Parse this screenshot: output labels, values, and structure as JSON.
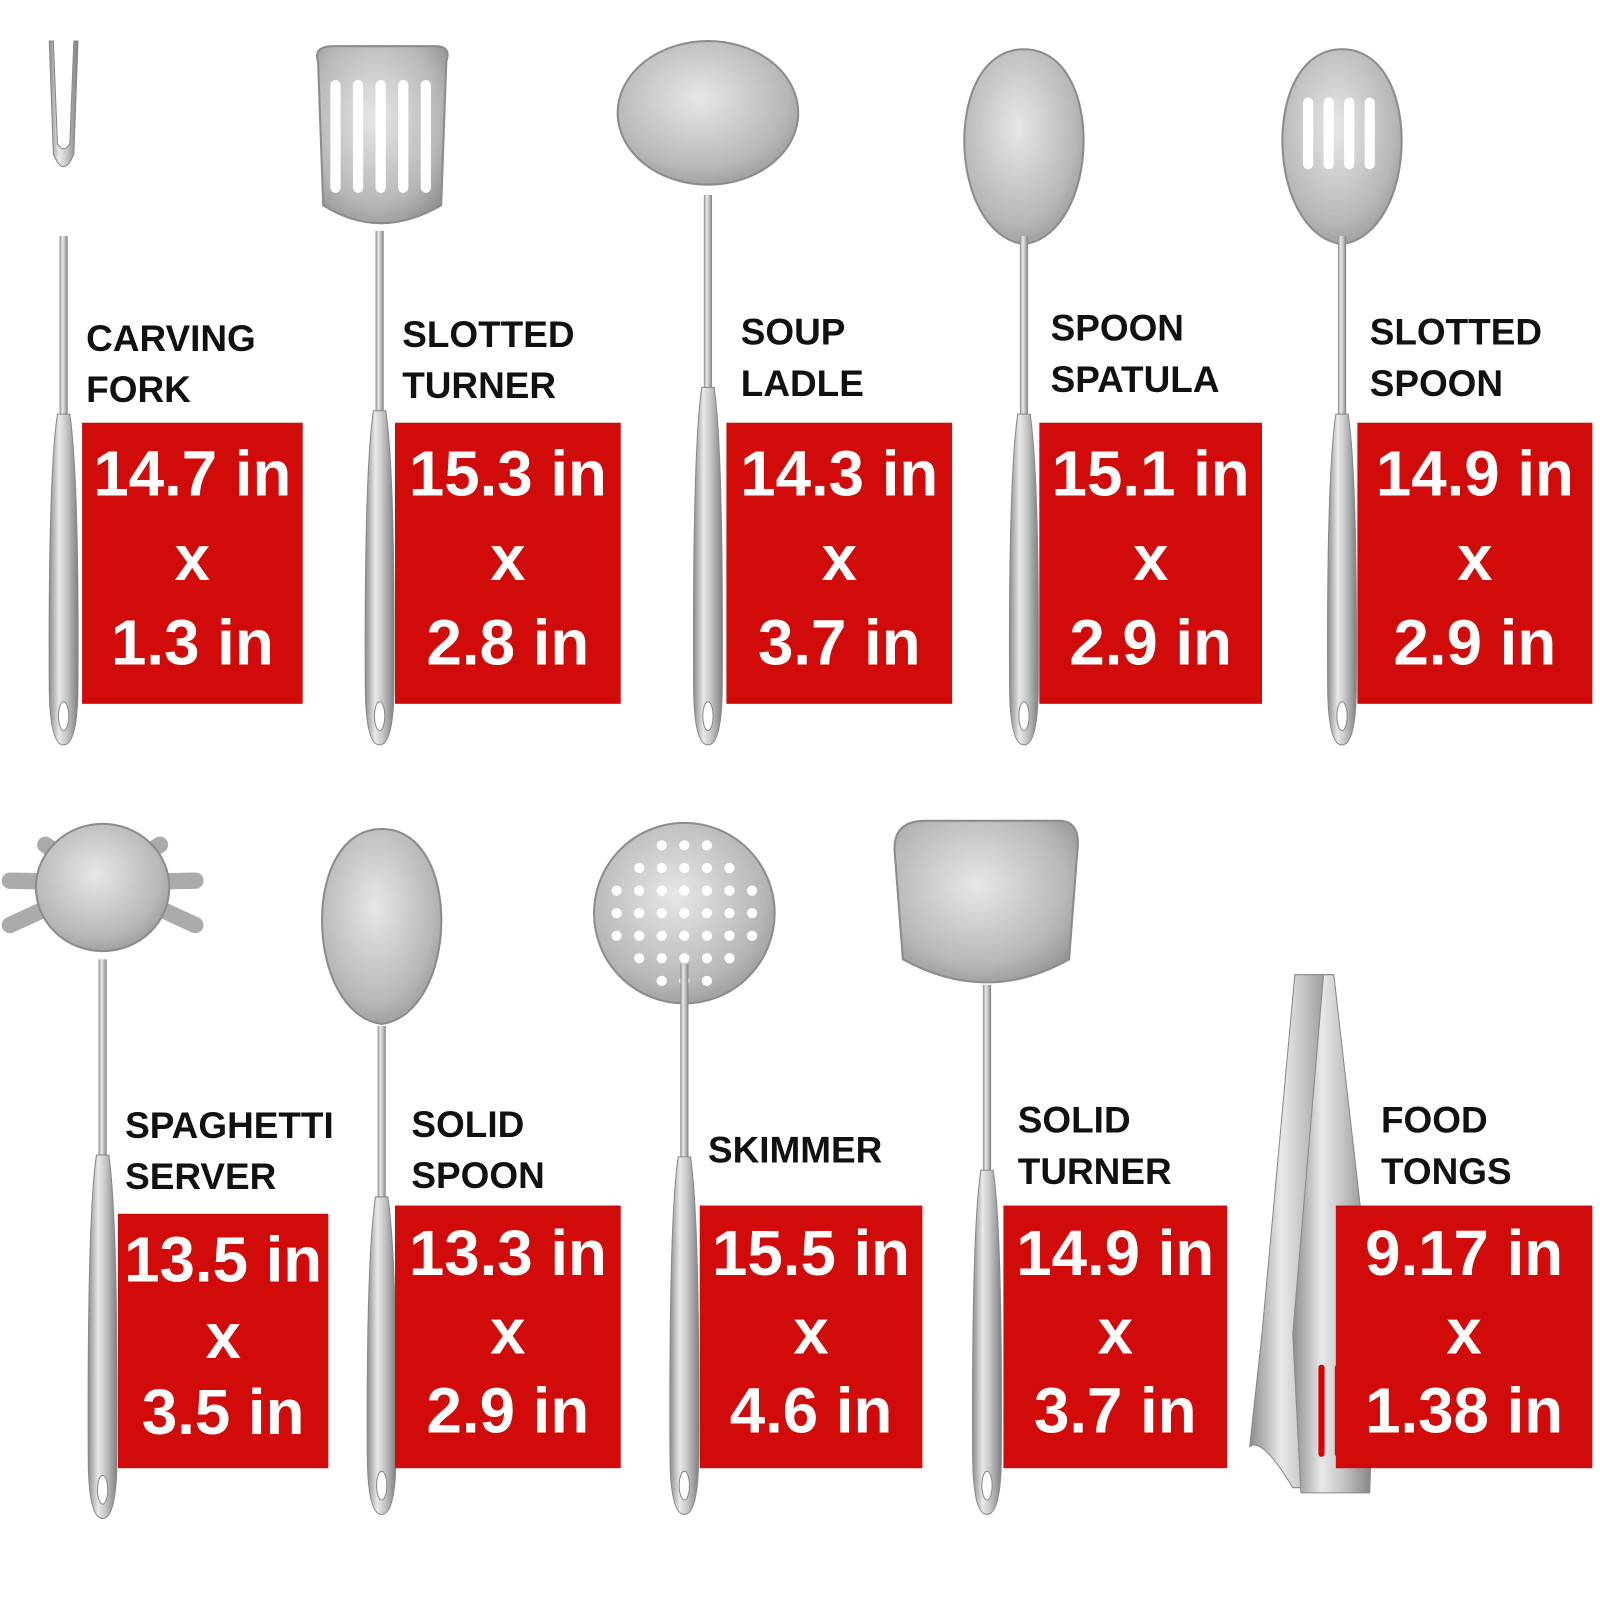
{
  "items": [
    {
      "name": [
        "CARVING",
        "FORK"
      ],
      "size": [
        "14.7 in",
        "x",
        "1.3 in"
      ]
    },
    {
      "name": [
        "SLOTTED",
        "TURNER"
      ],
      "size": [
        "15.3 in",
        "x",
        "2.8 in"
      ]
    },
    {
      "name": [
        "SOUP",
        "LADLE"
      ],
      "size": [
        "14.3 in",
        "x",
        "3.7 in"
      ]
    },
    {
      "name": [
        "SPOON",
        "SPATULA"
      ],
      "size": [
        "15.1 in",
        "x",
        "2.9 in"
      ]
    },
    {
      "name": [
        "SLOTTED",
        "SPOON"
      ],
      "size": [
        "14.9 in",
        "x",
        "2.9 in"
      ]
    },
    {
      "name": [
        "SPAGHETTI",
        "SERVER"
      ],
      "size": [
        "13.5 in",
        "x",
        "3.5 in"
      ]
    },
    {
      "name": [
        "SOLID",
        "SPOON"
      ],
      "size": [
        "13.3 in",
        "x",
        "2.9 in"
      ]
    },
    {
      "name": [
        "SKIMMER"
      ],
      "size": [
        "15.5 in",
        "x",
        "4.6 in"
      ]
    },
    {
      "name": [
        "SOLID",
        "TURNER"
      ],
      "size": [
        "14.9 in",
        "x",
        "3.7 in"
      ]
    },
    {
      "name": [
        "FOOD",
        "TONGS"
      ],
      "size": [
        "9.17 in",
        "x",
        "1.38 in"
      ]
    }
  ]
}
